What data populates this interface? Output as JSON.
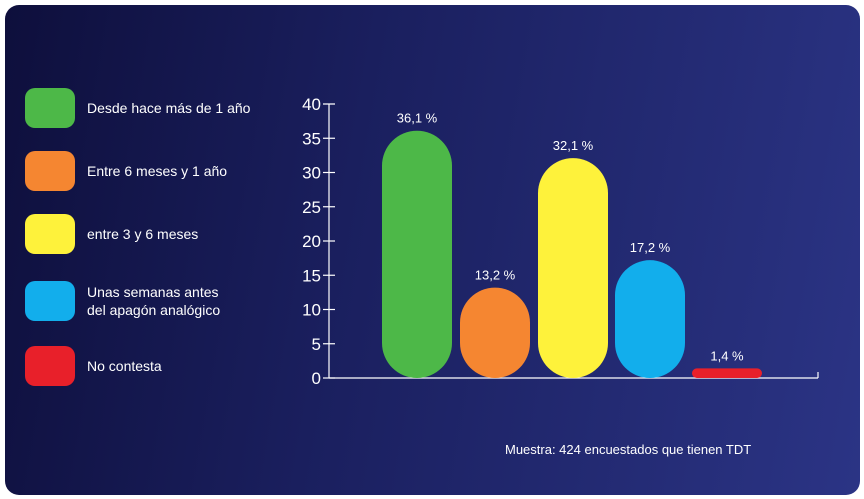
{
  "colors": {
    "green": "#4db848",
    "orange": "#f58631",
    "yellow": "#fef23b",
    "blue": "#12aeec",
    "red": "#e8202a",
    "axis": "#ffffff",
    "text": "#ffffff"
  },
  "legend": [
    {
      "label": "Desde hace más de 1 año",
      "color": "#4db848"
    },
    {
      "label": "Entre 6 meses y 1 año",
      "color": "#f58631"
    },
    {
      "label": "entre 3 y 6 meses",
      "color": "#fef23b"
    },
    {
      "label": "Unas semanas antes\ndel apagón analógico",
      "color": "#12aeec"
    },
    {
      "label": "No contesta",
      "color": "#e8202a"
    }
  ],
  "note": "Muestra: 424 encuestados que tienen TDT",
  "chart_data": {
    "type": "bar",
    "categories": [
      "Desde hace más de 1 año",
      "Entre 6 meses y 1 año",
      "entre 3 y 6 meses",
      "Unas semanas antes del apagón analógico",
      "No contesta"
    ],
    "values": [
      36.1,
      13.2,
      32.1,
      17.2,
      1.4
    ],
    "data_labels": [
      "36,1 %",
      "13,2 %",
      "32,1 %",
      "17,2 %",
      "1,4 %"
    ],
    "colors": [
      "#4db848",
      "#f58631",
      "#fef23b",
      "#12aeec",
      "#e8202a"
    ],
    "ylim": [
      0,
      40
    ],
    "yticks": [
      0,
      5,
      10,
      15,
      20,
      25,
      30,
      35,
      40
    ],
    "grid": false,
    "legend_position": "left"
  }
}
